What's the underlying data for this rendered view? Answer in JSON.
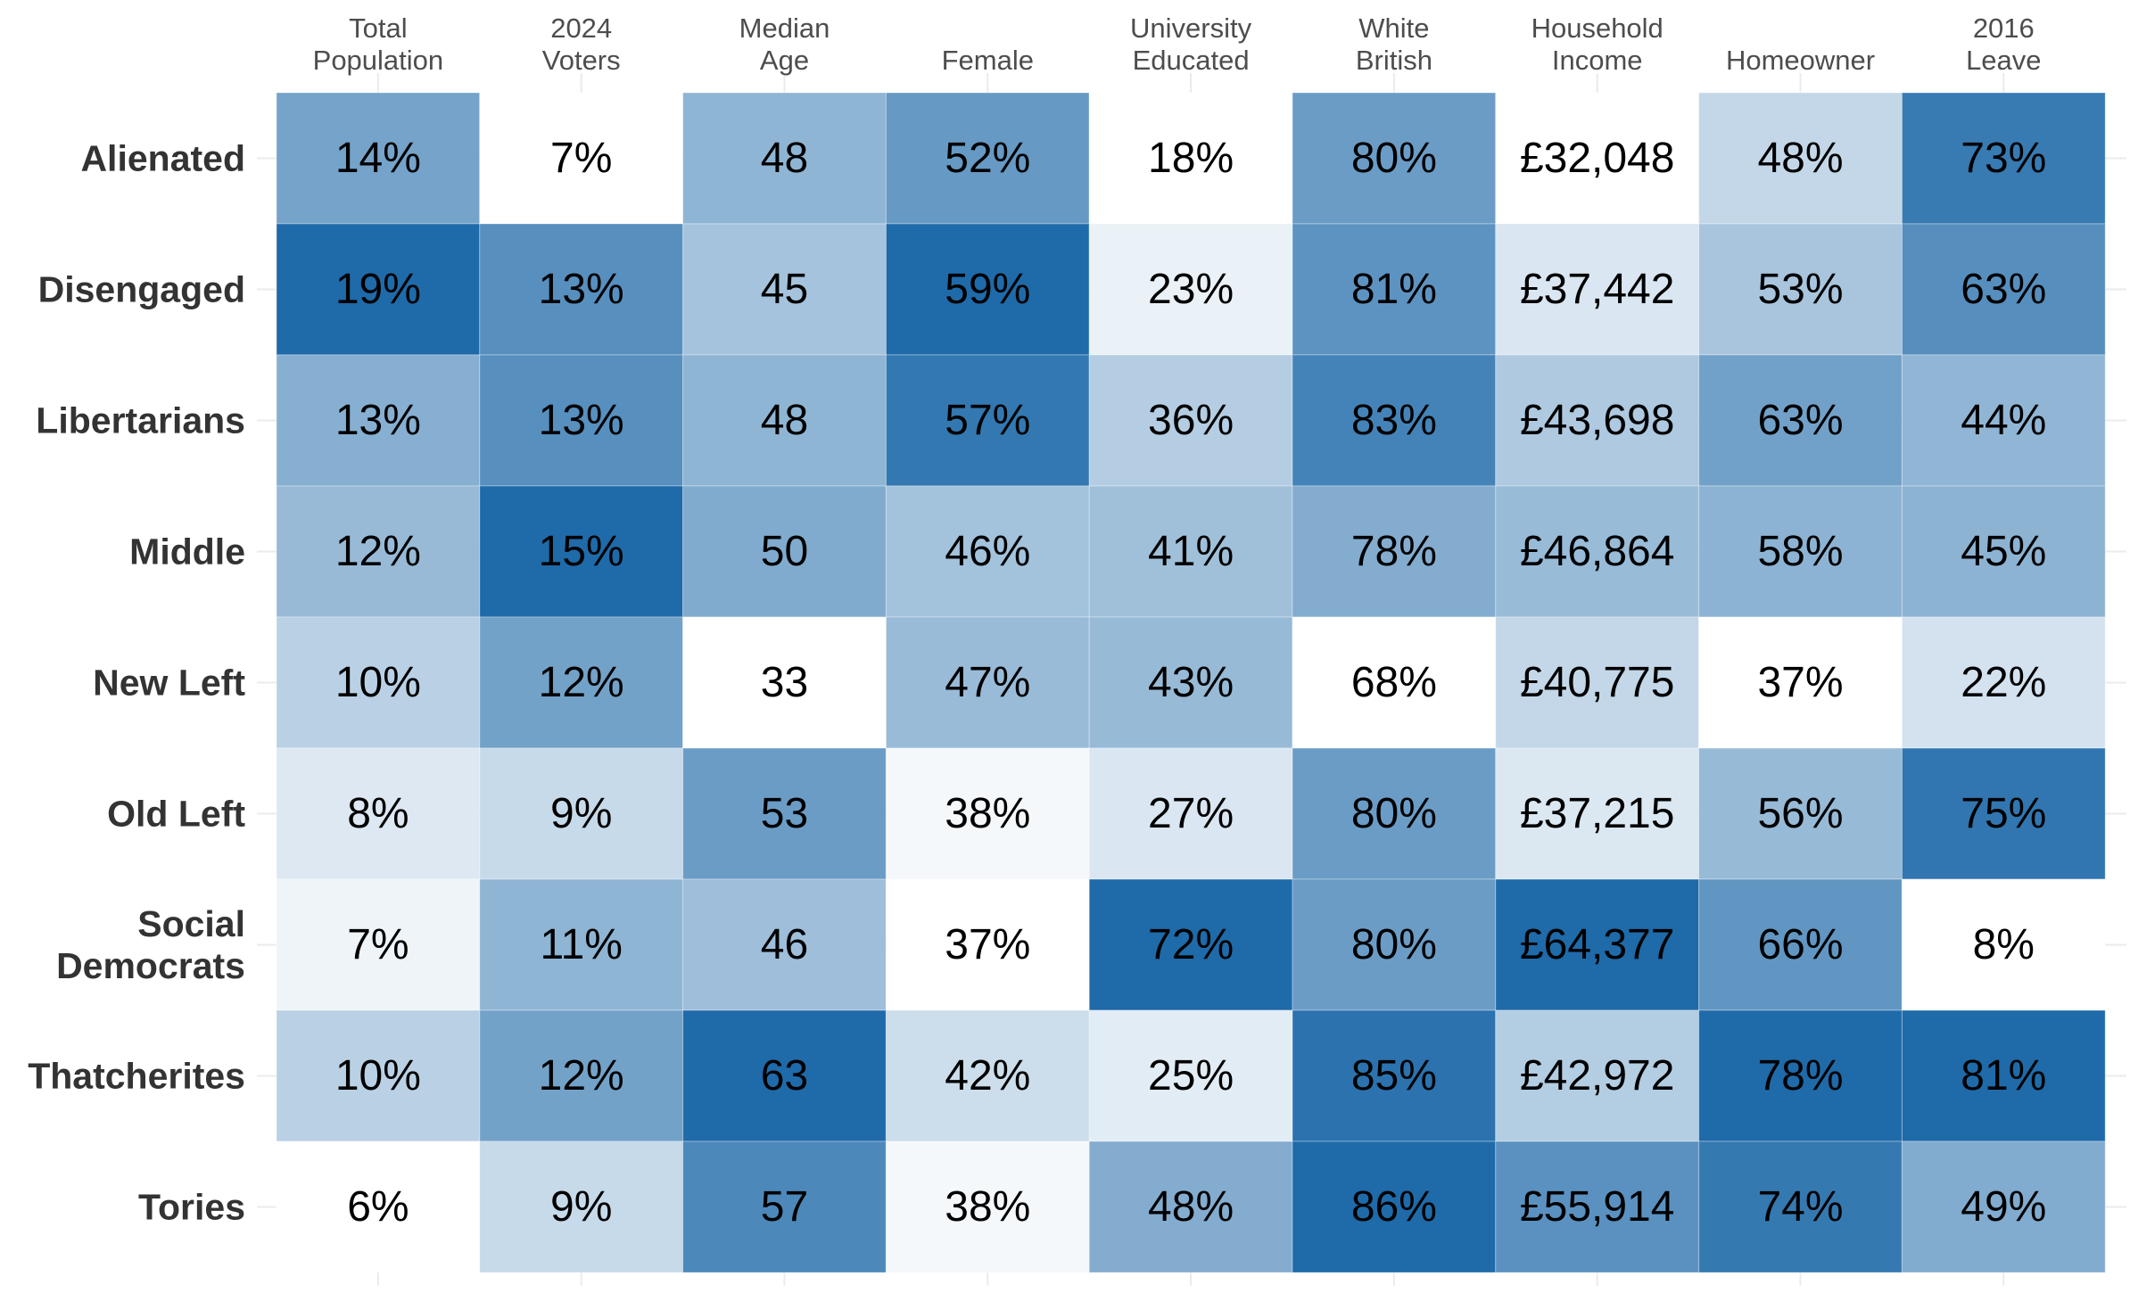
{
  "chart_data": {
    "type": "heatmap",
    "title": "",
    "xlabel": "",
    "ylabel": "",
    "legend": "none",
    "color_low": "#ffffff",
    "color_high": "#1f6aa9",
    "columns": [
      {
        "label_lines": [
          "Total",
          "Population"
        ]
      },
      {
        "label_lines": [
          "2024",
          "Voters"
        ]
      },
      {
        "label_lines": [
          "Median",
          "Age"
        ]
      },
      {
        "label_lines": [
          "Female"
        ]
      },
      {
        "label_lines": [
          "University",
          "Educated"
        ]
      },
      {
        "label_lines": [
          "White",
          "British"
        ]
      },
      {
        "label_lines": [
          "Household",
          "Income"
        ]
      },
      {
        "label_lines": [
          "Homeowner"
        ]
      },
      {
        "label_lines": [
          "2016",
          "Leave"
        ]
      }
    ],
    "rows": [
      {
        "label_lines": [
          "Alienated"
        ],
        "cells": [
          "14%",
          "7%",
          "48",
          "52%",
          "18%",
          "80%",
          "£32,048",
          "48%",
          "73%"
        ],
        "values": [
          14,
          7,
          48,
          52,
          18,
          80,
          32048,
          48,
          73
        ]
      },
      {
        "label_lines": [
          "Disengaged"
        ],
        "cells": [
          "19%",
          "13%",
          "45",
          "59%",
          "23%",
          "81%",
          "£37,442",
          "53%",
          "63%"
        ],
        "values": [
          19,
          13,
          45,
          59,
          23,
          81,
          37442,
          53,
          63
        ]
      },
      {
        "label_lines": [
          "Libertarians"
        ],
        "cells": [
          "13%",
          "13%",
          "48",
          "57%",
          "36%",
          "83%",
          "£43,698",
          "63%",
          "44%"
        ],
        "values": [
          13,
          13,
          48,
          57,
          36,
          83,
          43698,
          63,
          44
        ]
      },
      {
        "label_lines": [
          "Middle"
        ],
        "cells": [
          "12%",
          "15%",
          "50",
          "46%",
          "41%",
          "78%",
          "£46,864",
          "58%",
          "45%"
        ],
        "values": [
          12,
          15,
          50,
          46,
          41,
          78,
          46864,
          58,
          45
        ]
      },
      {
        "label_lines": [
          "New Left"
        ],
        "cells": [
          "10%",
          "12%",
          "33",
          "47%",
          "43%",
          "68%",
          "£40,775",
          "37%",
          "22%"
        ],
        "values": [
          10,
          12,
          33,
          47,
          43,
          68,
          40775,
          37,
          22
        ]
      },
      {
        "label_lines": [
          "Old Left"
        ],
        "cells": [
          "8%",
          "9%",
          "53",
          "38%",
          "27%",
          "80%",
          "£37,215",
          "56%",
          "75%"
        ],
        "values": [
          8,
          9,
          53,
          38,
          27,
          80,
          37215,
          56,
          75
        ]
      },
      {
        "label_lines": [
          "Social",
          "Democrats"
        ],
        "cells": [
          "7%",
          "11%",
          "46",
          "37%",
          "72%",
          "80%",
          "£64,377",
          "66%",
          "8%"
        ],
        "values": [
          7,
          11,
          46,
          37,
          72,
          80,
          64377,
          66,
          8
        ]
      },
      {
        "label_lines": [
          "Thatcherites"
        ],
        "cells": [
          "10%",
          "12%",
          "63",
          "42%",
          "25%",
          "85%",
          "£42,972",
          "78%",
          "81%"
        ],
        "values": [
          10,
          12,
          63,
          42,
          25,
          85,
          42972,
          78,
          81
        ]
      },
      {
        "label_lines": [
          "Tories"
        ],
        "cells": [
          "6%",
          "9%",
          "57",
          "38%",
          "48%",
          "86%",
          "£55,914",
          "74%",
          "49%"
        ],
        "values": [
          6,
          9,
          57,
          38,
          48,
          86,
          55914,
          74,
          49
        ]
      }
    ]
  }
}
